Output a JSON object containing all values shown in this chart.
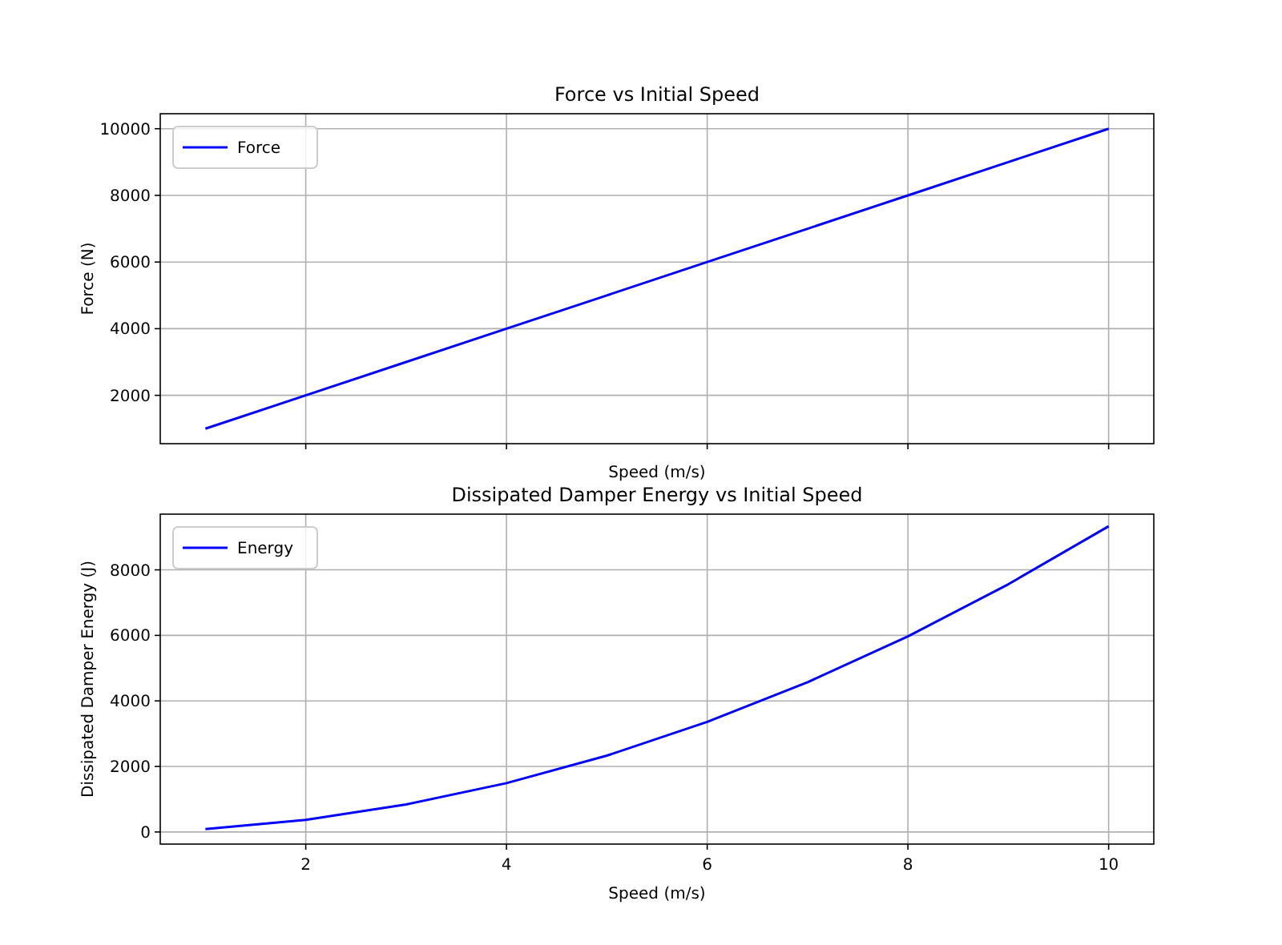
{
  "chart_data": [
    {
      "type": "line",
      "title": "Force vs Initial Speed",
      "xlabel": "Speed (m/s)",
      "ylabel": "Force (N)",
      "x": [
        1,
        2,
        3,
        4,
        5,
        6,
        7,
        8,
        9,
        10
      ],
      "series": [
        {
          "name": "Force",
          "color": "#0000ff",
          "values": [
            1000,
            2000,
            3000,
            4000,
            5000,
            6000,
            7000,
            8000,
            9000,
            10000
          ]
        }
      ],
      "xlim": [
        0.55,
        10.45
      ],
      "xticks": [
        2,
        4,
        6,
        8,
        10
      ],
      "ylim": [
        550,
        10450
      ],
      "yticks": [
        2000,
        4000,
        6000,
        8000,
        10000
      ],
      "tick_labels": "y",
      "grid": true,
      "legend": "top left"
    },
    {
      "type": "line",
      "title": "Dissipated Damper Energy vs Initial Speed",
      "xlabel": "Speed (m/s)",
      "ylabel": "Dissipated Damper Energy (J)",
      "x": [
        1,
        2,
        3,
        4,
        5,
        6,
        7,
        8,
        9,
        10
      ],
      "series": [
        {
          "name": "Energy",
          "color": "#0000ff",
          "values": [
            90,
            370,
            840,
            1490,
            2330,
            3360,
            4570,
            5970,
            7560,
            9330
          ]
        }
      ],
      "xlim": [
        0.55,
        10.45
      ],
      "xticks": [
        2,
        4,
        6,
        8,
        10
      ],
      "ylim": [
        -370,
        9700
      ],
      "yticks": [
        0,
        2000,
        4000,
        6000,
        8000
      ],
      "grid": true,
      "legend": "top left"
    }
  ]
}
